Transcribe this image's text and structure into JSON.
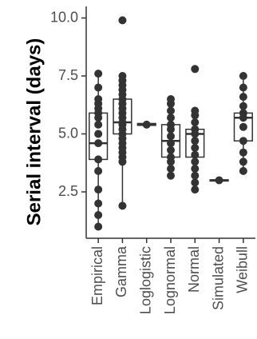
{
  "chart_data": {
    "type": "boxplot",
    "title": "",
    "xlabel": "",
    "ylabel": "Serial interval (days)",
    "ylim": [
      0.5,
      10.5
    ],
    "y_ticks": [
      2.5,
      5.0,
      7.5,
      10.0
    ],
    "y_tick_labels": [
      "2.5",
      "5.0",
      "7.5",
      "10.0"
    ],
    "grid": false,
    "legend": "none",
    "colors": {
      "box_stroke": "#333333",
      "box_fill": "#ffffff",
      "point": "#333333",
      "axis": "#333333"
    },
    "categories": [
      "Empirical",
      "Gamma",
      "Loglogistic",
      "Lognormal",
      "Normal",
      "Simulated",
      "Weibull"
    ],
    "boxes": [
      {
        "category": "Empirical",
        "q1": 3.9,
        "median": 4.6,
        "q3": 5.9,
        "whisker_low": 1.0,
        "whisker_high": 7.6,
        "points": [
          1.0,
          1.5,
          2.0,
          2.6,
          3.4,
          3.9,
          4.6,
          5.0,
          5.4,
          5.7,
          5.9,
          6.1,
          6.3,
          6.5,
          7.0,
          7.6
        ]
      },
      {
        "category": "Gamma",
        "q1": 5.0,
        "median": 5.5,
        "q3": 6.5,
        "whisker_low": 1.9,
        "whisker_high": 7.6,
        "points": [
          1.9,
          3.8,
          4.0,
          4.2,
          4.4,
          4.6,
          4.8,
          5.0,
          5.2,
          5.4,
          5.5,
          5.7,
          5.9,
          6.1,
          6.3,
          6.5,
          6.7,
          6.9,
          7.1,
          7.3,
          7.5,
          9.9
        ]
      },
      {
        "category": "Loglogistic",
        "q1": 5.37,
        "median": 5.4,
        "q3": 5.45,
        "whisker_low": 5.35,
        "whisker_high": 5.47,
        "points": [
          5.4
        ]
      },
      {
        "category": "Lognormal",
        "q1": 4.0,
        "median": 4.7,
        "q3": 5.4,
        "whisker_low": 3.2,
        "whisker_high": 6.5,
        "points": [
          3.2,
          3.5,
          3.8,
          4.0,
          4.3,
          4.6,
          4.9,
          5.2,
          5.4,
          5.7,
          6.0,
          6.3,
          6.5
        ]
      },
      {
        "category": "Normal",
        "q1": 4.0,
        "median": 5.0,
        "q3": 5.2,
        "whisker_low": 2.6,
        "whisker_high": 6.0,
        "points": [
          2.6,
          2.9,
          3.2,
          3.5,
          3.8,
          4.1,
          4.4,
          4.7,
          5.0,
          5.2,
          5.5,
          5.8,
          6.0,
          7.8
        ]
      },
      {
        "category": "Simulated",
        "q1": 2.98,
        "median": 3.0,
        "q3": 3.02,
        "whisker_low": 2.97,
        "whisker_high": 3.03,
        "points": [
          3.0
        ]
      },
      {
        "category": "Weibull",
        "q1": 4.7,
        "median": 5.7,
        "q3": 5.9,
        "whisker_low": 3.4,
        "whisker_high": 7.5,
        "points": [
          3.4,
          3.8,
          4.2,
          4.7,
          5.3,
          5.7,
          5.9,
          6.2,
          6.6,
          7.0,
          7.5
        ]
      }
    ]
  }
}
